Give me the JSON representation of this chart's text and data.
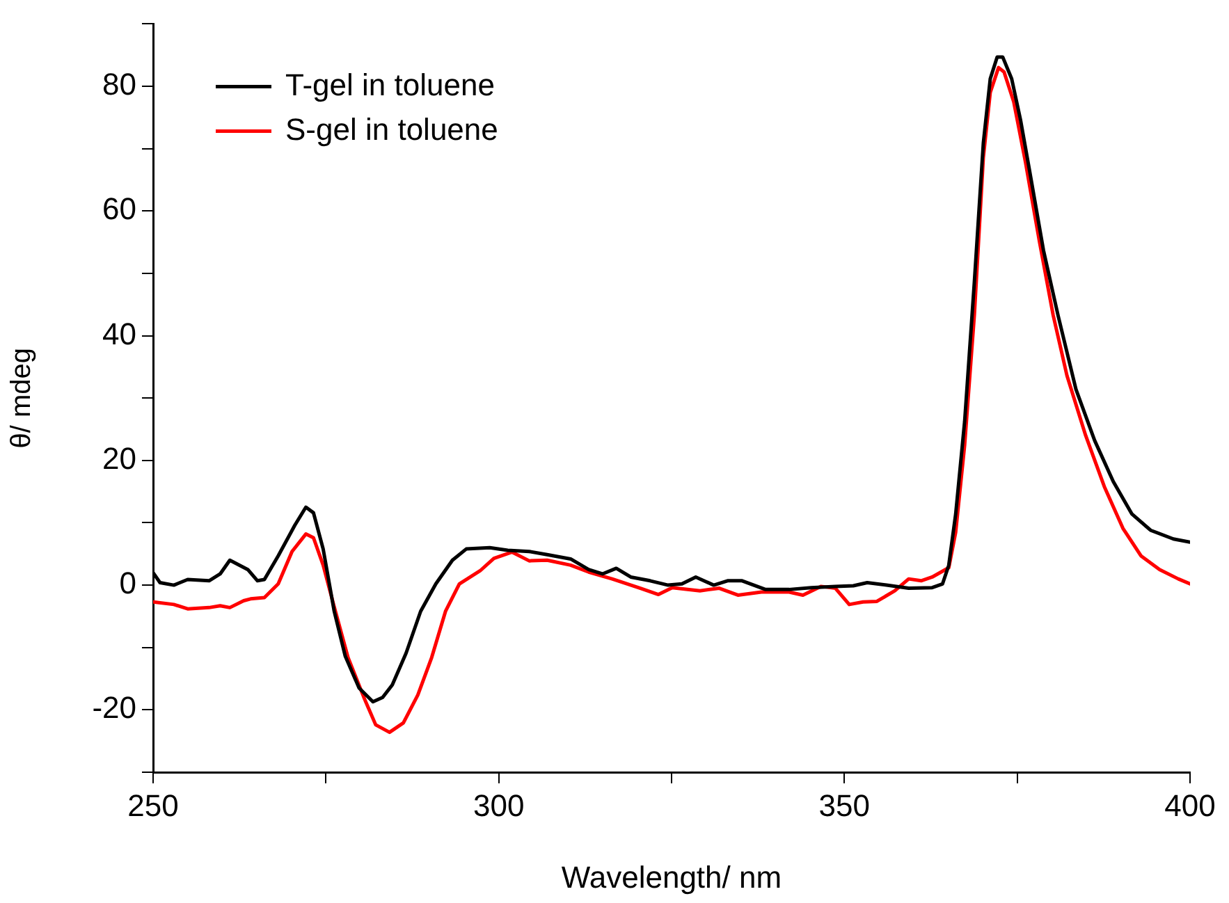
{
  "chart_data": {
    "type": "line",
    "xlabel": "Wavelength/ nm",
    "ylabel": "θ/ mdeg",
    "xlim": [
      250,
      400
    ],
    "xticks": [
      250,
      {
        "value": 275,
        "label": null
      },
      300,
      {
        "value": 325,
        "label": null
      },
      350,
      {
        "value": 375,
        "label": null
      },
      400
    ],
    "ylim": [
      -30,
      90
    ],
    "yticks": [
      {
        "value": -30,
        "label": null
      },
      -20,
      {
        "value": -10,
        "label": null
      },
      0,
      {
        "value": 10,
        "label": null
      },
      20,
      {
        "value": 30,
        "label": null
      },
      40,
      {
        "value": 50,
        "label": null
      },
      60,
      {
        "value": 70,
        "label": null
      },
      80,
      {
        "value": 90,
        "label": null
      }
    ],
    "grid": false,
    "legend": "top left",
    "marker": "none",
    "line_style": "solid",
    "series": [
      {
        "name": "T-gel in toluene",
        "color": "#000000",
        "x": [
          250,
          251,
          253,
          255,
          258.1,
          259.7,
          261.1,
          263.7,
          265.1,
          266.1,
          268.1,
          270.5,
          272.1,
          273.2,
          274.6,
          276.2,
          277.8,
          279.8,
          281.8,
          283.2,
          284.6,
          286.6,
          288.7,
          290.9,
          293.3,
          295.3,
          298.7,
          301.3,
          304.4,
          307,
          310.4,
          313,
          315,
          317,
          319.1,
          321.9,
          324.5,
          326.5,
          328.5,
          331.1,
          333.1,
          335.2,
          338.6,
          342,
          345.2,
          348.7,
          351.3,
          353.3,
          356.1,
          359.3,
          362.7,
          364.2,
          365.1,
          366.1,
          367.4,
          368.8,
          370.1,
          371.1,
          372.1,
          372.9,
          374.2,
          375.5,
          376.8,
          378.8,
          380.9,
          383.5,
          386.2,
          388.9,
          391.6,
          394.3,
          397.6,
          400
        ],
        "values": [
          2.0,
          0.4,
          0,
          0.9,
          0.7,
          1.8,
          4.0,
          2.5,
          0.7,
          0.9,
          4.7,
          9.6,
          12.5,
          11.6,
          5.8,
          -4.2,
          -11.4,
          -16.5,
          -18.7,
          -18,
          -16,
          -10.9,
          -4.2,
          0.2,
          4.0,
          5.8,
          6.0,
          5.6,
          5.4,
          4.9,
          4.2,
          2.5,
          1.8,
          2.7,
          1.3,
          0.7,
          0,
          0.2,
          1.3,
          0,
          0.7,
          0.7,
          -0.7,
          -0.7,
          -0.4,
          -0.2,
          -0.1,
          0.4,
          0,
          -0.5,
          -0.4,
          0.2,
          3.2,
          11.4,
          26.3,
          48.6,
          70.9,
          81.2,
          84.7,
          84.7,
          81.2,
          74.5,
          66.4,
          53.7,
          43.3,
          31.4,
          23.2,
          16.6,
          11.4,
          8.8,
          7.4,
          6.9
        ]
      },
      {
        "name": "S-gel in toluene",
        "color": "#ff0000",
        "x": [
          250,
          253,
          255,
          258.1,
          259.7,
          261.1,
          263.1,
          264.1,
          266.1,
          268.1,
          270.1,
          272.1,
          273.2,
          274.6,
          276.2,
          278.2,
          280.6,
          282.2,
          284.2,
          286.2,
          288.3,
          290.3,
          292.3,
          294.3,
          297.3,
          299.3,
          301.9,
          304.4,
          307,
          310.4,
          313,
          316.4,
          320.5,
          323.1,
          325.1,
          329.1,
          331.9,
          334.6,
          338,
          342,
          344,
          346.6,
          348.7,
          350.7,
          352.7,
          354.7,
          357.3,
          359.3,
          361.1,
          362.7,
          365.1,
          366.1,
          367.4,
          368.8,
          370.1,
          371.1,
          372.3,
          373.1,
          374.5,
          376.2,
          378.2,
          380.2,
          382.2,
          384.9,
          387.6,
          390.3,
          392.9,
          395.6,
          398.3,
          400
        ],
        "values": [
          -2.7,
          -3.1,
          -3.8,
          -3.6,
          -3.3,
          -3.6,
          -2.5,
          -2.2,
          -2.0,
          0.2,
          5.4,
          8.2,
          7.6,
          3.2,
          -3.5,
          -11.6,
          -18.3,
          -22.4,
          -23.6,
          -22.1,
          -17.6,
          -11.6,
          -4.2,
          0.2,
          2.3,
          4.3,
          5.3,
          3.9,
          4.0,
          3.2,
          2.1,
          1.0,
          -0.5,
          -1.5,
          -0.4,
          -0.9,
          -0.5,
          -1.6,
          -1.1,
          -1.1,
          -1.6,
          -0.2,
          -0.5,
          -3.1,
          -2.7,
          -2.6,
          -0.9,
          1.0,
          0.7,
          1.3,
          2.8,
          8.5,
          22.5,
          43.3,
          68.6,
          79,
          83,
          82.3,
          77.5,
          67.8,
          55.2,
          43.3,
          33.6,
          24,
          15.8,
          9.1,
          4.7,
          2.5,
          1.0,
          0.2
        ]
      }
    ]
  }
}
